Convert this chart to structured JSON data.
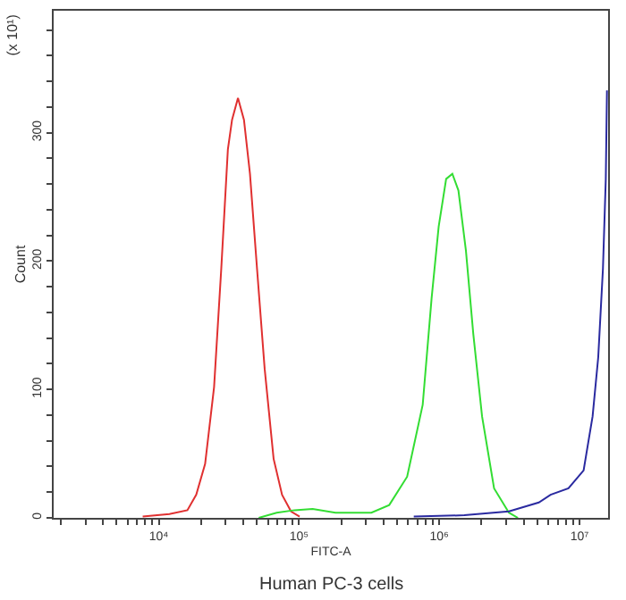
{
  "chart_data": {
    "type": "line",
    "xlabel": "FITC-A",
    "ylabel": "Count",
    "log": "x",
    "grid": false,
    "marker": "none",
    "line_style": "solid",
    "annotations": [
      "(x 10¹)",
      "Human PC-3 cells"
    ],
    "xlim": [
      1780,
      16000000
    ],
    "ylim": [
      0,
      395
    ],
    "xticks": [
      {
        "value": 2000,
        "label": null
      },
      {
        "value": 3000,
        "label": null
      },
      {
        "value": 4000,
        "label": null
      },
      {
        "value": 5000,
        "label": null
      },
      {
        "value": 6000,
        "label": null
      },
      {
        "value": 7000,
        "label": null
      },
      {
        "value": 8000,
        "label": null
      },
      {
        "value": 9000,
        "label": null
      },
      {
        "value": 10000,
        "label": "10⁴"
      },
      {
        "value": 20000,
        "label": null
      },
      {
        "value": 30000,
        "label": null
      },
      {
        "value": 40000,
        "label": null
      },
      {
        "value": 50000,
        "label": null
      },
      {
        "value": 60000,
        "label": null
      },
      {
        "value": 70000,
        "label": null
      },
      {
        "value": 80000,
        "label": null
      },
      {
        "value": 90000,
        "label": null
      },
      {
        "value": 100000,
        "label": "10⁵"
      },
      {
        "value": 200000,
        "label": null
      },
      {
        "value": 300000,
        "label": null
      },
      {
        "value": 400000,
        "label": null
      },
      {
        "value": 500000,
        "label": null
      },
      {
        "value": 600000,
        "label": null
      },
      {
        "value": 700000,
        "label": null
      },
      {
        "value": 800000,
        "label": null
      },
      {
        "value": 900000,
        "label": null
      },
      {
        "value": 1000000,
        "label": "10⁶"
      },
      {
        "value": 2000000,
        "label": null
      },
      {
        "value": 3000000,
        "label": null
      },
      {
        "value": 4000000,
        "label": null
      },
      {
        "value": 5000000,
        "label": null
      },
      {
        "value": 6000000,
        "label": null
      },
      {
        "value": 7000000,
        "label": null
      },
      {
        "value": 8000000,
        "label": null
      },
      {
        "value": 9000000,
        "label": null
      },
      {
        "value": 10000000,
        "label": "10⁷"
      }
    ],
    "yticks": [
      0,
      {
        "value": 20,
        "label": null
      },
      {
        "value": 40,
        "label": null
      },
      {
        "value": 60,
        "label": null
      },
      {
        "value": 80,
        "label": null
      },
      100,
      {
        "value": 120,
        "label": null
      },
      {
        "value": 140,
        "label": null
      },
      {
        "value": 160,
        "label": null
      },
      {
        "value": 180,
        "label": null
      },
      200,
      {
        "value": 220,
        "label": null
      },
      {
        "value": 240,
        "label": null
      },
      {
        "value": 260,
        "label": null
      },
      {
        "value": 280,
        "label": null
      },
      300,
      {
        "value": 320,
        "label": null
      },
      {
        "value": 340,
        "label": null
      },
      {
        "value": 360,
        "label": null
      },
      {
        "value": 380,
        "label": null
      }
    ],
    "series": [
      {
        "color": "#e03030",
        "x": [
          7680,
          11900,
          16000,
          18500,
          21400,
          24800,
          27900,
          31100,
          33300,
          36700,
          40500,
          44700,
          50200,
          56900,
          65900,
          75700,
          87700,
          101000
        ],
        "values": [
          1,
          3,
          6,
          18,
          42,
          102,
          194,
          287,
          310,
          327,
          310,
          268,
          194,
          116,
          46,
          18,
          5,
          1
        ]
      },
      {
        "color": "#33dd33",
        "x": [
          51600,
          69300,
          93000,
          125000,
          182000,
          328000,
          440000,
          590000,
          762000,
          882000,
          991000,
          1120000,
          1240000,
          1370000,
          1550000,
          1750000,
          2020000,
          2460000,
          3140000,
          3640000
        ],
        "values": [
          0,
          4,
          6,
          7,
          4,
          4,
          10,
          32,
          88,
          171,
          227,
          264,
          268,
          255,
          208,
          143,
          79,
          23,
          4,
          0
        ]
      },
      {
        "color": "#2a2aa0",
        "x": [
          658000,
          1510000,
          3140000,
          5130000,
          6220000,
          8340000,
          10700000,
          12400000,
          13600000,
          14700000,
          15400000,
          15700000
        ],
        "values": [
          1,
          2,
          5,
          12,
          18,
          23,
          37,
          79,
          125,
          194,
          264,
          333
        ]
      }
    ]
  }
}
